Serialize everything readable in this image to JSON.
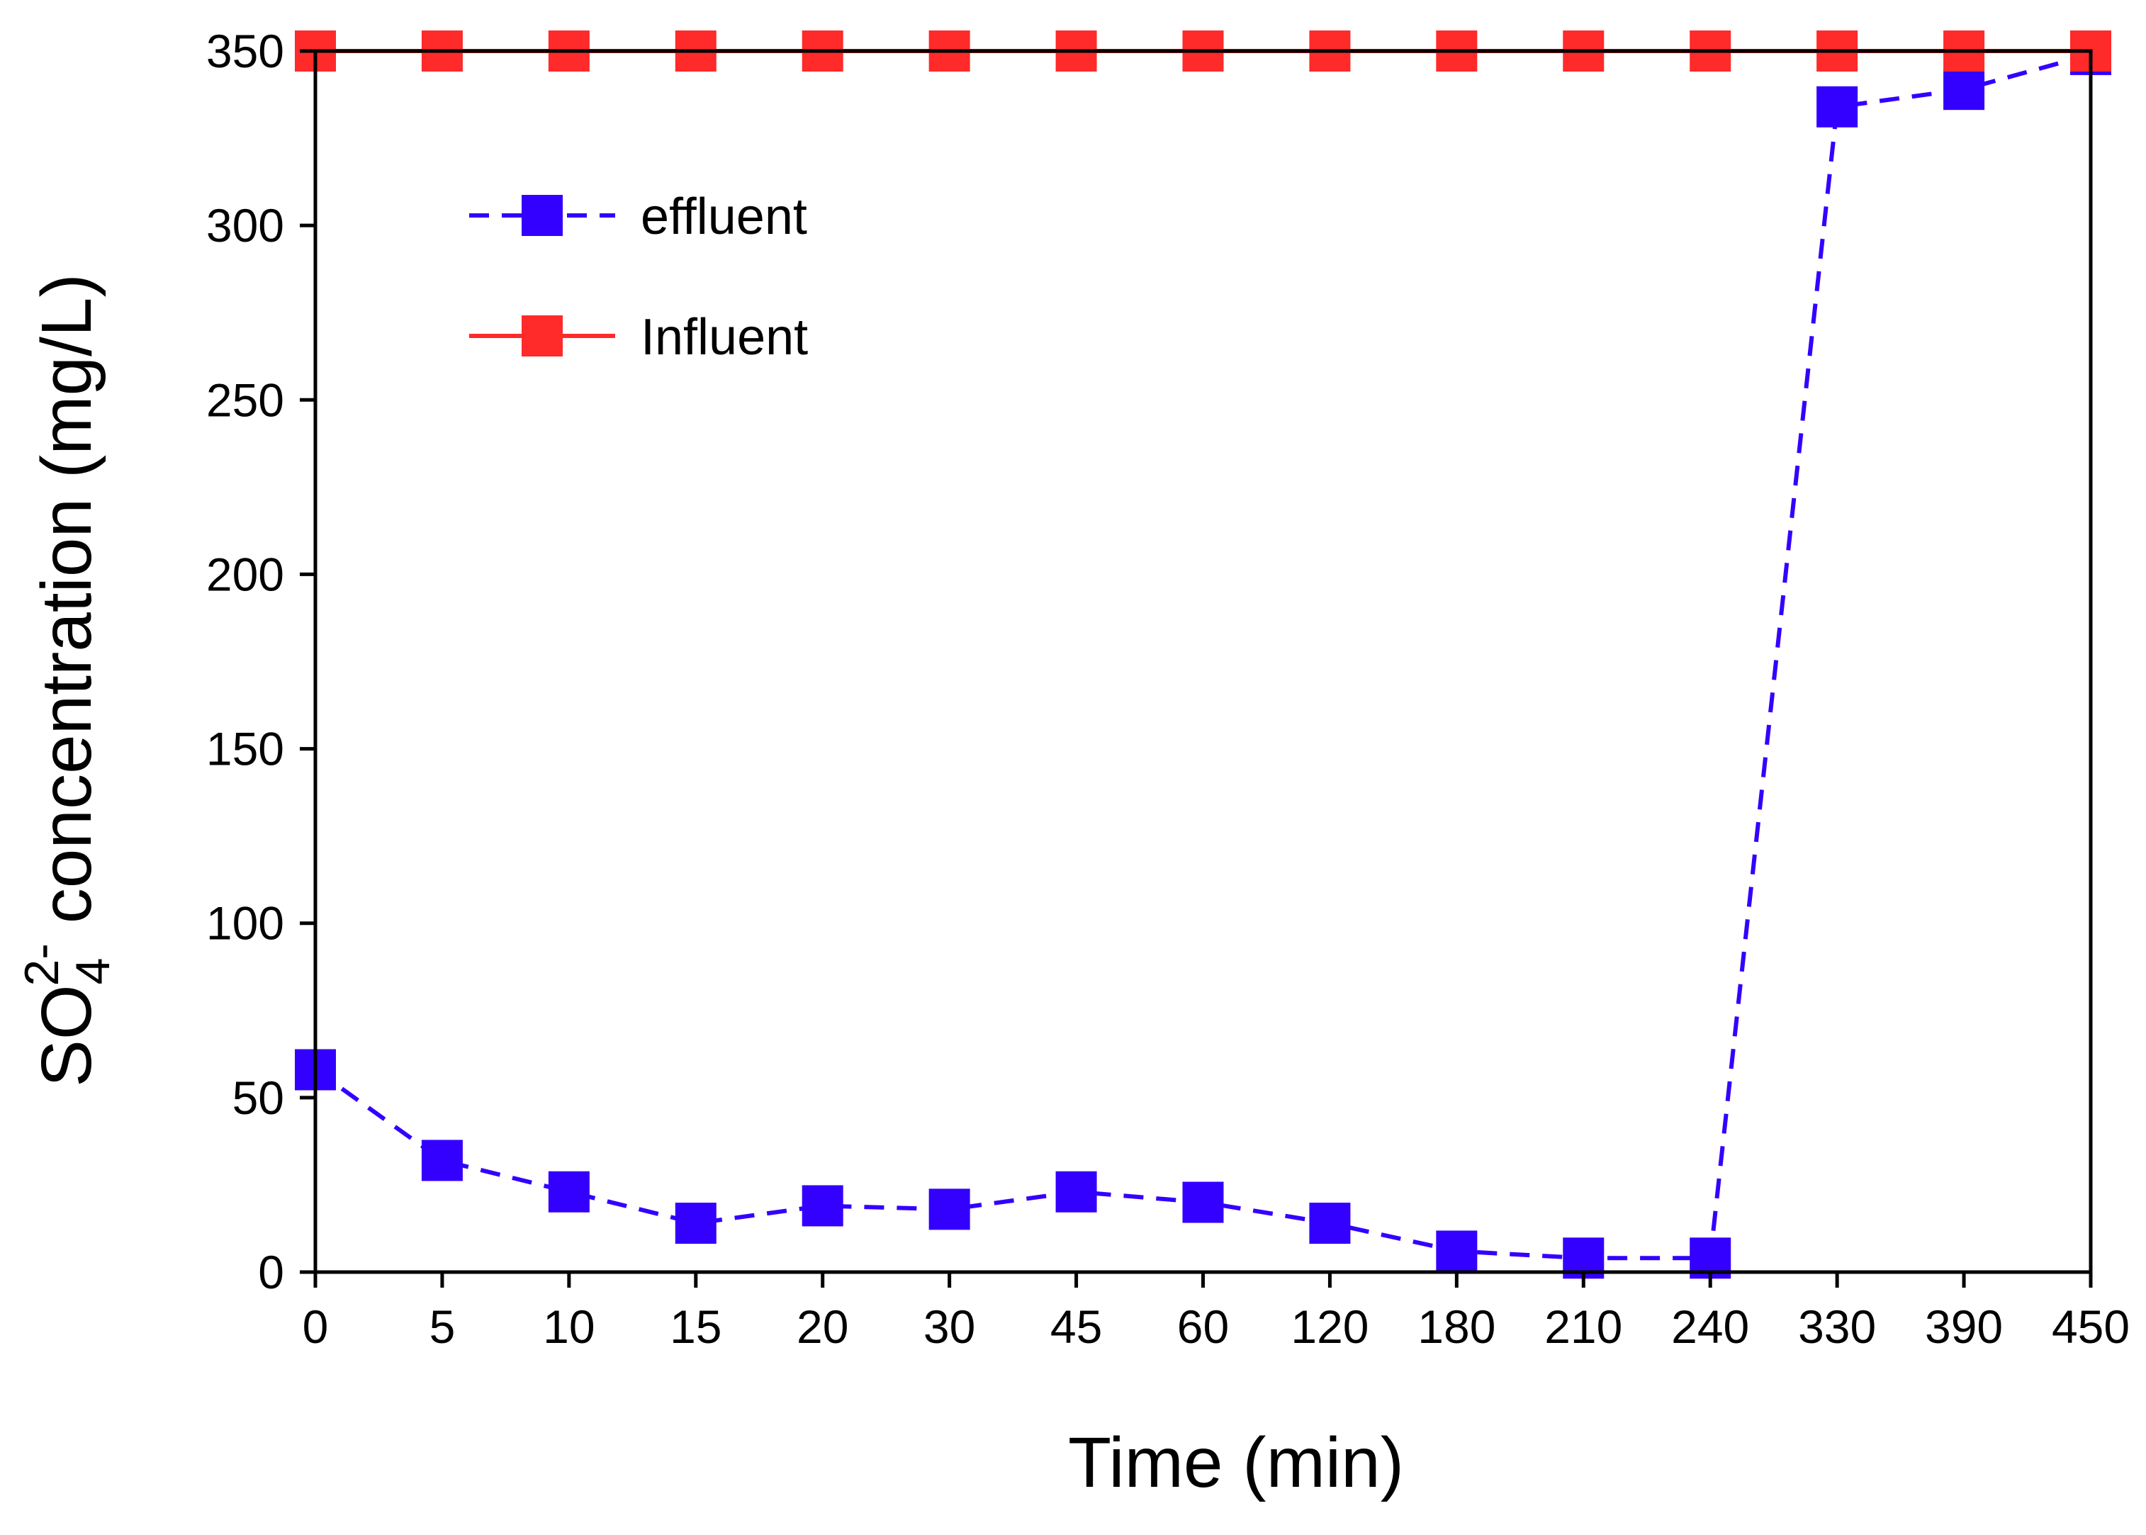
{
  "chart_data": {
    "type": "line",
    "title": "",
    "xlabel": "Time (min)",
    "ylabel": {
      "prefix": "SO",
      "subscript": "4",
      "superscript": "2-",
      "suffix": " concentration (mg/L)"
    },
    "categories": [
      "0",
      "5",
      "10",
      "15",
      "20",
      "30",
      "45",
      "60",
      "120",
      "180",
      "210",
      "240",
      "330",
      "390",
      "450"
    ],
    "ylim": [
      0,
      350
    ],
    "yticks": [
      0,
      50,
      100,
      150,
      200,
      250,
      300,
      350
    ],
    "grid": false,
    "legend_position": "top-left",
    "series": [
      {
        "name": "effluent",
        "values": [
          58,
          32,
          23,
          14,
          19,
          18,
          23,
          20,
          14,
          6,
          4,
          4,
          334,
          339,
          349
        ],
        "color": "#3300ff",
        "line_style": "dashed",
        "marker": "square"
      },
      {
        "name": "Influent",
        "values": [
          350,
          350,
          350,
          350,
          350,
          350,
          350,
          350,
          350,
          350,
          350,
          350,
          350,
          350,
          350
        ],
        "color": "#ff2a2a",
        "line_style": "solid",
        "marker": "square"
      }
    ]
  }
}
